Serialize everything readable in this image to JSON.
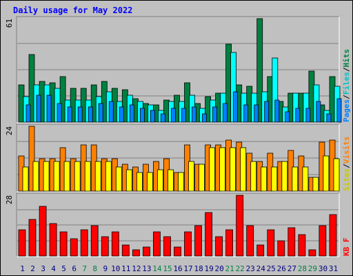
{
  "chart_data": [
    {
      "type": "bar",
      "title": "Daily usage for May 2022",
      "categories": [
        "1",
        "2",
        "3",
        "4",
        "5",
        "6",
        "7",
        "8",
        "9",
        "10",
        "11",
        "12",
        "13",
        "14",
        "15",
        "16",
        "17",
        "18",
        "19",
        "20",
        "21",
        "22",
        "23",
        "24",
        "25",
        "26",
        "27",
        "28",
        "29",
        "30",
        "31"
      ],
      "weekend_categories": [
        "7",
        "8",
        "14",
        "15",
        "21",
        "22",
        "28",
        "29"
      ],
      "ylim": [
        0,
        61
      ],
      "max_label": "61",
      "ylabel_parts": [
        "Pages",
        "/",
        "Files",
        "/",
        "Hits"
      ],
      "series": [
        {
          "name": "Hits",
          "color": "#008040",
          "values": [
            22,
            40,
            24,
            23,
            27,
            20,
            20,
            22,
            24,
            20,
            19,
            14,
            11,
            10,
            13,
            16,
            23,
            11,
            15,
            17,
            46,
            22,
            21,
            61,
            27,
            12,
            17,
            17,
            30,
            10,
            27
          ]
        },
        {
          "name": "Files",
          "color": "#00ffff",
          "values": [
            15,
            22,
            22,
            20,
            13,
            13,
            13,
            15,
            18,
            12,
            16,
            12,
            10,
            7,
            12,
            12,
            16,
            8,
            13,
            17,
            41,
            17,
            17,
            18,
            38,
            9,
            17,
            17,
            22,
            7,
            21
          ]
        },
        {
          "name": "Pages",
          "color": "#0080ff",
          "values": [
            10,
            16,
            16,
            11,
            9,
            9,
            9,
            11,
            12,
            9,
            10,
            8,
            7,
            5,
            8,
            8,
            9,
            5,
            9,
            11,
            18,
            10,
            10,
            12,
            13,
            6,
            8,
            8,
            12,
            5,
            14
          ]
        }
      ]
    },
    {
      "type": "bar",
      "ylim": [
        0,
        24
      ],
      "max_label": "24",
      "ylabel_parts": [
        "Sites",
        "/",
        "Visits"
      ],
      "series": [
        {
          "name": "Visits",
          "color": "#ff8000",
          "values": [
            13,
            24,
            12,
            12,
            16,
            12,
            17,
            17,
            12,
            12,
            10,
            9,
            10,
            11,
            12,
            7,
            17,
            10,
            17,
            17,
            19,
            18,
            14,
            11,
            14,
            11,
            15,
            13,
            5,
            18,
            19
          ]
        },
        {
          "name": "Sites",
          "color": "#ffff00",
          "values": [
            9,
            11,
            11,
            11,
            11,
            11,
            11,
            11,
            11,
            9,
            8,
            7,
            7,
            8,
            8,
            7,
            11,
            10,
            16,
            16,
            16,
            16,
            11,
            9,
            9,
            11,
            9,
            9,
            5,
            13,
            12
          ]
        }
      ]
    },
    {
      "type": "bar",
      "ylim": [
        0,
        28
      ],
      "max_label": "28",
      "ylabel_parts": [
        "KB F"
      ],
      "series": [
        {
          "name": "KB F",
          "color": "#ff0000",
          "values": [
            12,
            17,
            23,
            15,
            11,
            8,
            12,
            14,
            9,
            11,
            5,
            3,
            4,
            11,
            9,
            4,
            11,
            14,
            20,
            9,
            12,
            28,
            14,
            5,
            12,
            7,
            13,
            10,
            3,
            14,
            19
          ]
        }
      ]
    }
  ]
}
